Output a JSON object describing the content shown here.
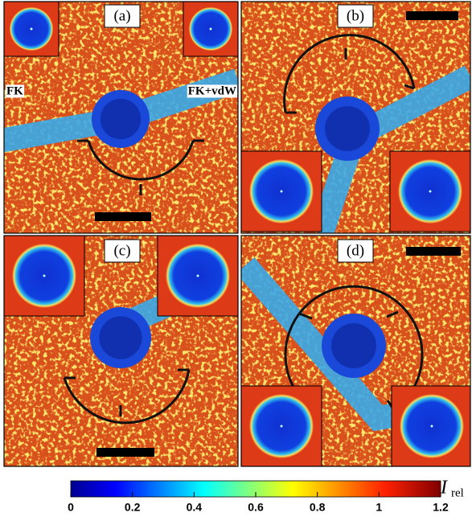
{
  "panels": [
    {
      "label": "(a)",
      "inset_labels": [
        "FK",
        "FK+vdW"
      ]
    },
    {
      "label": "(b)"
    },
    {
      "label": "(c)"
    },
    {
      "label": "(d)"
    }
  ],
  "colorbar": {
    "symbol": "I",
    "subscript": "rel",
    "lim": [
      0,
      1.2
    ],
    "ticks": [
      0,
      0.2,
      0.4,
      0.6,
      0.8,
      1,
      1.2
    ]
  }
}
